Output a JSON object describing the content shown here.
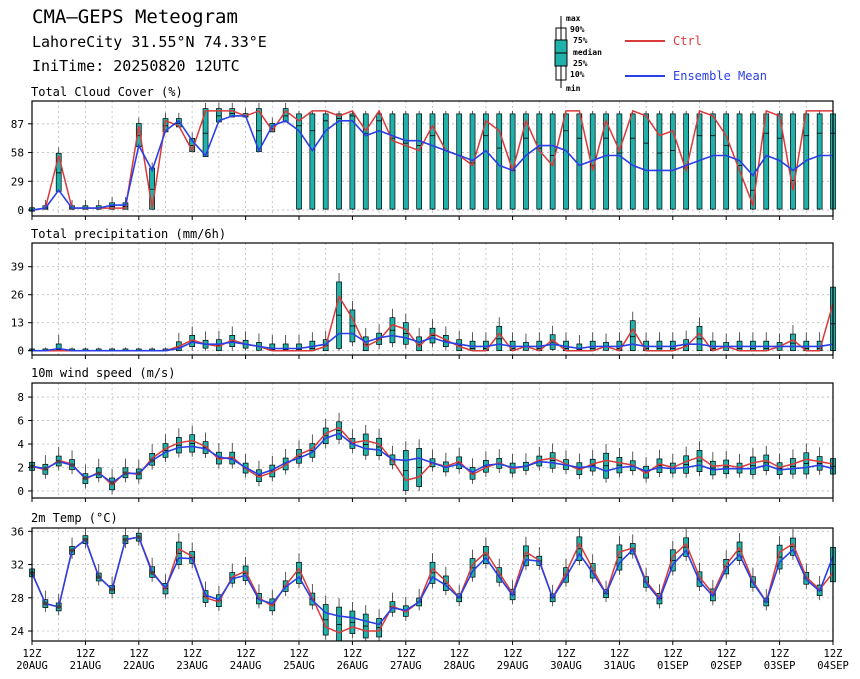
{
  "header": {
    "title": "CMA—GEPS Meteogram",
    "location": "LahoreCity 31.55°N 74.33°E",
    "init_time": "IniTime: 20250820 12UTC"
  },
  "legend": {
    "box_labels": [
      "max",
      "90%",
      "75%",
      "median",
      "25%",
      "10%",
      "min"
    ],
    "ctrl_label": "Ctrl",
    "mean_label": "Ensemble Mean",
    "ctrl_color": "#d93a3a",
    "mean_color": "#2a3fe6",
    "box_color": "#20b2aa"
  },
  "x_axis": {
    "labels_top": [
      "12Z",
      "12Z",
      "12Z",
      "12Z",
      "12Z",
      "12Z",
      "12Z",
      "12Z",
      "12Z",
      "12Z",
      "12Z",
      "12Z",
      "12Z",
      "12Z",
      "12Z",
      "12Z"
    ],
    "labels_bottom": [
      "20AUG",
      "21AUG",
      "22AUG",
      "23AUG",
      "24AUG",
      "25AUG",
      "26AUG",
      "27AUG",
      "28AUG",
      "29AUG",
      "30AUG",
      "31AUG",
      "01SEP",
      "02SEP",
      "03SEP",
      "04SEP"
    ]
  },
  "chart_data": [
    {
      "type": "box",
      "title": "Total Cloud Cover (%)",
      "yticks": [
        0,
        29,
        58,
        87
      ],
      "ylim": [
        -6,
        110
      ],
      "x_unit": "steps of 6h from 20250820 12UTC",
      "x_start": 0,
      "x_step": 1,
      "count": 61,
      "box_from": 20,
      "box_q25": 1,
      "box_q75": 97,
      "ctrl": [
        0,
        2,
        55,
        2,
        2,
        2,
        2,
        2,
        85,
        2,
        90,
        85,
        60,
        100,
        100,
        100,
        95,
        100,
        80,
        100,
        90,
        100,
        100,
        95,
        100,
        80,
        100,
        70,
        65,
        60,
        85,
        60,
        55,
        45,
        90,
        80,
        40,
        90,
        60,
        45,
        100,
        100,
        40,
        90,
        60,
        100,
        95,
        75,
        80,
        40,
        100,
        95,
        75,
        40,
        5,
        100,
        95,
        20,
        100,
        100,
        100
      ],
      "mean": [
        0,
        2,
        20,
        2,
        2,
        2,
        5,
        5,
        65,
        40,
        80,
        90,
        70,
        55,
        90,
        95,
        95,
        60,
        85,
        90,
        80,
        60,
        80,
        90,
        90,
        75,
        80,
        75,
        70,
        70,
        65,
        60,
        55,
        50,
        60,
        45,
        40,
        55,
        65,
        65,
        60,
        45,
        50,
        55,
        55,
        45,
        40,
        40,
        40,
        45,
        50,
        55,
        55,
        50,
        35,
        55,
        50,
        40,
        50,
        55,
        55
      ]
    },
    {
      "type": "box",
      "title": "Total precipitation (mm/6h)",
      "yticks": [
        0,
        13,
        26,
        39
      ],
      "ylim": [
        -2,
        50
      ],
      "x_unit": "steps of 6h from 20250820 12UTC",
      "x_start": 0,
      "x_step": 1,
      "count": 61,
      "ctrl": [
        0,
        0,
        0,
        0,
        0,
        0,
        0,
        0,
        0,
        0,
        0,
        2,
        5,
        3,
        2,
        5,
        3,
        2,
        0,
        0,
        0,
        0,
        2,
        25,
        15,
        2,
        5,
        12,
        10,
        2,
        8,
        5,
        2,
        0,
        0,
        8,
        0,
        2,
        0,
        5,
        0,
        0,
        0,
        2,
        0,
        10,
        0,
        0,
        0,
        2,
        8,
        0,
        2,
        0,
        0,
        0,
        2,
        5,
        0,
        0,
        22
      ],
      "mean": [
        0,
        0,
        1,
        0,
        0,
        0,
        0,
        0,
        0,
        0,
        0,
        1,
        4,
        3,
        3,
        4,
        3,
        2,
        1,
        1,
        1,
        2,
        3,
        8,
        8,
        4,
        6,
        7,
        6,
        4,
        6,
        4,
        3,
        2,
        2,
        3,
        2,
        2,
        2,
        3,
        2,
        1,
        2,
        2,
        2,
        3,
        2,
        2,
        2,
        3,
        3,
        2,
        2,
        2,
        2,
        2,
        2,
        2,
        2,
        2,
        3
      ]
    },
    {
      "type": "box",
      "title": "10m wind speed (m/s)",
      "yticks": [
        0,
        2,
        4,
        6,
        8
      ],
      "ylim": [
        -0.6,
        9.2
      ],
      "x_unit": "steps of 6h from 20250820 12UTC",
      "x_start": 0,
      "x_step": 1,
      "count": 61,
      "ctrl": [
        2.1,
        1.8,
        2.6,
        2.3,
        1.0,
        1.6,
        0.5,
        1.6,
        1.4,
        2.8,
        3.6,
        4.1,
        4.3,
        3.8,
        2.7,
        2.9,
        1.9,
        1.2,
        1.6,
        2.2,
        3.1,
        3.6,
        4.9,
        5.4,
        4.1,
        4.3,
        4.0,
        2.6,
        0.9,
        1.2,
        2.4,
        2.1,
        2.5,
        1.4,
        2.0,
        2.4,
        1.9,
        2.1,
        2.6,
        2.8,
        2.3,
        1.8,
        2.3,
        2.6,
        2.4,
        2.2,
        1.5,
        2.3,
        2.0,
        2.5,
        2.9,
        2.1,
        2.2,
        2.0,
        2.4,
        2.6,
        2.0,
        2.3,
        2.7,
        2.5,
        2.3
      ],
      "mean": [
        2.1,
        1.9,
        2.5,
        2.2,
        1.1,
        1.5,
        0.7,
        1.5,
        1.5,
        2.6,
        3.3,
        3.7,
        3.8,
        3.6,
        2.9,
        2.7,
        2.0,
        1.4,
        1.8,
        2.4,
        2.8,
        3.3,
        4.5,
        4.9,
        4.0,
        3.6,
        3.5,
        2.7,
        2.6,
        2.8,
        2.4,
        2.0,
        2.3,
        1.6,
        2.2,
        2.3,
        2.0,
        2.1,
        2.5,
        2.4,
        2.2,
        2.0,
        2.1,
        1.7,
        2.0,
        2.1,
        1.7,
        2.0,
        1.9,
        2.0,
        2.2,
        1.8,
        1.9,
        1.9,
        1.9,
        2.2,
        1.8,
        1.9,
        2.0,
        2.2,
        1.9
      ]
    },
    {
      "type": "box",
      "title": "2m Temp (°C)",
      "yticks": [
        24,
        28,
        32,
        36
      ],
      "ylim": [
        22.8,
        36.4
      ],
      "x_unit": "steps of 6h from 20250820 12UTC",
      "x_start": 0,
      "x_step": 1,
      "count": 61,
      "ctrl": [
        31.0,
        27.3,
        26.9,
        33.7,
        35.0,
        30.5,
        29.0,
        35.0,
        35.3,
        31.2,
        29.0,
        33.9,
        33.0,
        28.0,
        27.5,
        30.5,
        31.2,
        28.0,
        27.0,
        29.5,
        31.5,
        28.0,
        24.5,
        23.8,
        24.5,
        24.0,
        24.0,
        27.0,
        26.3,
        27.5,
        31.5,
        30.0,
        28.0,
        32.0,
        33.5,
        31.0,
        28.5,
        33.5,
        32.5,
        28.0,
        31.0,
        34.5,
        31.5,
        28.5,
        33.5,
        34.0,
        30.0,
        28.0,
        33.0,
        34.5,
        30.5,
        28.5,
        32.0,
        34.0,
        30.0,
        27.5,
        33.5,
        34.5,
        30.5,
        29.0,
        31.0
      ],
      "mean": [
        31.0,
        27.3,
        26.9,
        33.7,
        35.0,
        30.5,
        29.0,
        35.0,
        35.3,
        31.0,
        29.2,
        32.8,
        32.7,
        28.3,
        27.8,
        30.3,
        30.7,
        27.8,
        27.3,
        29.3,
        30.5,
        27.7,
        26.2,
        25.8,
        25.6,
        25.2,
        24.8,
        26.8,
        26.5,
        27.5,
        30.5,
        29.5,
        28.0,
        31.2,
        32.8,
        30.5,
        28.3,
        32.6,
        32.4,
        28.0,
        30.5,
        33.3,
        31.0,
        28.5,
        32.2,
        33.8,
        29.8,
        27.8,
        32.0,
        33.7,
        30.0,
        28.2,
        31.5,
        33.2,
        29.8,
        27.5,
        32.3,
        33.8,
        30.2,
        28.8,
        33.0
      ]
    }
  ]
}
